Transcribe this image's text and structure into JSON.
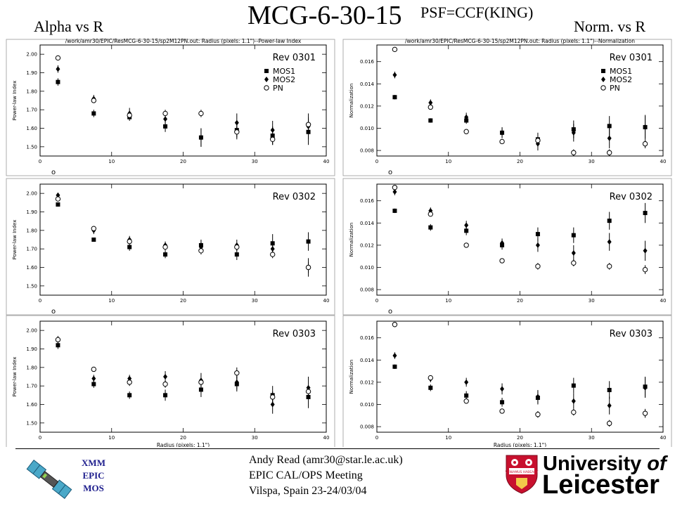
{
  "title": "MCG-6-30-15",
  "subtitle": "PSF=CCF(KING)",
  "left_heading": "Alpha vs R",
  "right_heading": "Norm. vs R",
  "footer": {
    "mission_lines": [
      "XMM",
      "EPIC",
      "MOS"
    ],
    "presenter": "Andy Read (amr30@star.le.ac.uk)",
    "meeting": "EPIC CAL/OPS Meeting",
    "location": "Vilspa, Spain 23-24/03/04",
    "university_line1": "University",
    "university_of": "of",
    "university_line2": "Leicester",
    "logo_motto": "VENIAMUS HABEANT"
  },
  "colors": {
    "text": "#000000",
    "mission_text": "#1c1c8c",
    "logo_red": "#c8102e",
    "points": "#000000"
  },
  "chart_data": [
    {
      "type": "scatter",
      "header": "/work/amr30/EPIC/ResMCG-6-30-15/sp2M12PN.out: Radius (pixels: 1.1\")--Power-law Index",
      "panel_label": "Rev 0301",
      "ylabel": "Power-law Index",
      "xlabel": "",
      "xlim": [
        0,
        40
      ],
      "ylim": [
        1.45,
        2.05
      ],
      "xticks": [
        0,
        10,
        20,
        30,
        40
      ],
      "yticks": [
        1.5,
        1.6,
        1.7,
        1.8,
        1.9,
        2.0
      ],
      "ytick_labels": [
        "1.50",
        "1.60",
        "1.70",
        "1.80",
        "1.90",
        "2.00"
      ],
      "legend": true,
      "legend_placement": "top-right",
      "stray_mark": "o",
      "series": [
        {
          "name": "MOS1",
          "marker": "square",
          "x": [
            2.5,
            7.5,
            12.5,
            17.5,
            22.5,
            27.5,
            32.5,
            37.5
          ],
          "y": [
            1.85,
            1.68,
            1.66,
            1.61,
            1.55,
            1.59,
            1.56,
            1.58
          ],
          "err": [
            0.02,
            0.02,
            0.02,
            0.03,
            0.05,
            0.05,
            0.05,
            0.07
          ]
        },
        {
          "name": "MOS2",
          "marker": "diamond",
          "x": [
            2.5,
            7.5,
            12.5,
            17.5,
            22.5,
            27.5,
            32.5,
            37.5
          ],
          "y": [
            1.92,
            1.76,
            1.68,
            1.65,
            1.55,
            1.63,
            1.59,
            1.61
          ],
          "err": [
            0.02,
            0.02,
            0.03,
            0.03,
            0.05,
            0.05,
            0.05,
            0.07
          ]
        },
        {
          "name": "PN",
          "marker": "circle",
          "x": [
            2.5,
            7.5,
            12.5,
            17.5,
            22.5,
            27.5,
            32.5,
            37.5
          ],
          "y": [
            1.98,
            1.75,
            1.67,
            1.68,
            1.68,
            1.58,
            1.54,
            1.62
          ],
          "err": [
            0.01,
            0.01,
            0.02,
            0.02,
            0.02,
            0.03,
            0.03,
            0.04
          ]
        }
      ]
    },
    {
      "type": "scatter",
      "header": "/work/amr30/EPIC/ResMCG-6-30-15/sp2M12PN.out: Radius (pixels: 1.1\")--Normalization",
      "panel_label": "Rev 0301",
      "ylabel": "Normalization",
      "xlabel": "",
      "xlim": [
        0,
        40
      ],
      "ylim": [
        0.0075,
        0.0175
      ],
      "xticks": [
        0,
        10,
        20,
        30,
        40
      ],
      "yticks": [
        0.008,
        0.01,
        0.012,
        0.014,
        0.016
      ],
      "ytick_labels": [
        "0.008",
        "0.010",
        "0.012",
        "0.014",
        "0.016"
      ],
      "legend": true,
      "legend_placement": "top-right",
      "stray_mark": "o",
      "series": [
        {
          "name": "MOS1",
          "marker": "square",
          "x": [
            2.5,
            7.5,
            12.5,
            17.5,
            22.5,
            27.5,
            32.5,
            37.5
          ],
          "y": [
            0.0128,
            0.0107,
            0.0107,
            0.0096,
            0.009,
            0.0099,
            0.0102,
            0.0101
          ],
          "err": [
            0.0002,
            0.0002,
            0.0003,
            0.0004,
            0.0006,
            0.0008,
            0.0009,
            0.001
          ]
        },
        {
          "name": "MOS2",
          "marker": "diamond",
          "x": [
            2.5,
            7.5,
            12.5,
            17.5,
            22.5,
            27.5,
            32.5,
            37.5
          ],
          "y": [
            0.0148,
            0.0123,
            0.011,
            0.0096,
            0.0086,
            0.0096,
            0.0091,
            0.0101
          ],
          "err": [
            0.0003,
            0.0003,
            0.0004,
            0.0005,
            0.0006,
            0.0008,
            0.0009,
            0.0011
          ]
        },
        {
          "name": "PN",
          "marker": "circle",
          "x": [
            2.5,
            7.5,
            12.5,
            17.5,
            22.5,
            27.5,
            32.5,
            37.5
          ],
          "y": [
            0.0171,
            0.0119,
            0.0097,
            0.0088,
            0.0089,
            0.0078,
            0.0078,
            0.0086
          ],
          "err": [
            0.0002,
            0.0002,
            0.0002,
            0.0002,
            0.0003,
            0.0003,
            0.0003,
            0.0004
          ]
        }
      ]
    },
    {
      "type": "scatter",
      "header": "",
      "panel_label": "Rev 0302",
      "ylabel": "Power-law Index",
      "xlabel": "",
      "xlim": [
        0,
        40
      ],
      "ylim": [
        1.45,
        2.05
      ],
      "xticks": [
        0,
        10,
        20,
        30,
        40
      ],
      "yticks": [
        1.5,
        1.6,
        1.7,
        1.8,
        1.9,
        2.0
      ],
      "ytick_labels": [
        "1.50",
        "1.60",
        "1.70",
        "1.80",
        "1.90",
        "2.00"
      ],
      "legend": false,
      "stray_mark": "o",
      "series": [
        {
          "marker": "square",
          "x": [
            2.5,
            7.5,
            12.5,
            17.5,
            22.5,
            27.5,
            32.5,
            37.5
          ],
          "y": [
            1.94,
            1.75,
            1.71,
            1.67,
            1.72,
            1.67,
            1.73,
            1.74
          ],
          "err": [
            0.01,
            0.01,
            0.02,
            0.02,
            0.03,
            0.03,
            0.05,
            0.05
          ]
        },
        {
          "marker": "diamond",
          "x": [
            2.5,
            7.5,
            12.5,
            17.5,
            22.5,
            27.5,
            32.5,
            37.5
          ],
          "y": [
            1.99,
            1.8,
            1.75,
            1.72,
            1.71,
            1.72,
            1.7,
            1.6
          ],
          "err": [
            0.01,
            0.02,
            0.02,
            0.02,
            0.03,
            0.03,
            0.04,
            0.05
          ]
        },
        {
          "marker": "circle",
          "x": [
            2.5,
            7.5,
            12.5,
            17.5,
            22.5,
            27.5,
            32.5,
            37.5
          ],
          "y": [
            1.97,
            1.81,
            1.74,
            1.71,
            1.69,
            1.71,
            1.67,
            1.6
          ],
          "err": [
            0.01,
            0.01,
            0.01,
            0.02,
            0.02,
            0.02,
            0.02,
            0.03
          ]
        }
      ]
    },
    {
      "type": "scatter",
      "header": "",
      "panel_label": "Rev 0302",
      "ylabel": "Normalization",
      "xlabel": "",
      "xlim": [
        0,
        40
      ],
      "ylim": [
        0.0075,
        0.0175
      ],
      "xticks": [
        0,
        10,
        20,
        30,
        40
      ],
      "yticks": [
        0.008,
        0.01,
        0.012,
        0.014,
        0.016
      ],
      "ytick_labels": [
        "0.008",
        "0.010",
        "0.012",
        "0.014",
        "0.016"
      ],
      "legend": false,
      "stray_mark": "o",
      "series": [
        {
          "marker": "square",
          "x": [
            2.5,
            7.5,
            12.5,
            17.5,
            22.5,
            27.5,
            32.5,
            37.5
          ],
          "y": [
            0.0151,
            0.0136,
            0.0133,
            0.012,
            0.013,
            0.0129,
            0.0142,
            0.0149
          ],
          "err": [
            0.0002,
            0.0003,
            0.0004,
            0.0004,
            0.0006,
            0.0007,
            0.0008,
            0.0009
          ]
        },
        {
          "marker": "diamond",
          "x": [
            2.5,
            7.5,
            12.5,
            17.5,
            22.5,
            27.5,
            32.5,
            37.5
          ],
          "y": [
            0.0168,
            0.0151,
            0.0138,
            0.0122,
            0.012,
            0.0113,
            0.0123,
            0.0115
          ],
          "err": [
            0.0003,
            0.0003,
            0.0004,
            0.0004,
            0.0006,
            0.0007,
            0.0008,
            0.0009
          ]
        },
        {
          "marker": "circle",
          "x": [
            2.5,
            7.5,
            12.5,
            17.5,
            22.5,
            27.5,
            32.5,
            37.5
          ],
          "y": [
            0.0172,
            0.0148,
            0.012,
            0.0106,
            0.0101,
            0.0104,
            0.0101,
            0.0098
          ],
          "err": [
            0.0002,
            0.0002,
            0.0002,
            0.0002,
            0.0003,
            0.0003,
            0.0003,
            0.0004
          ]
        }
      ]
    },
    {
      "type": "scatter",
      "header": "",
      "panel_label": "Rev 0303",
      "ylabel": "Power-law Index",
      "xlabel": "Radius (pixels: 1.1\")",
      "xlim": [
        0,
        40
      ],
      "ylim": [
        1.45,
        2.05
      ],
      "xticks": [
        0,
        10,
        20,
        30,
        40
      ],
      "yticks": [
        1.5,
        1.6,
        1.7,
        1.8,
        1.9,
        2.0
      ],
      "ytick_labels": [
        "1.50",
        "1.60",
        "1.70",
        "1.80",
        "1.90",
        "2.00"
      ],
      "legend": false,
      "series": [
        {
          "marker": "square",
          "x": [
            2.5,
            7.5,
            12.5,
            17.5,
            22.5,
            27.5,
            32.5,
            37.5
          ],
          "y": [
            1.92,
            1.71,
            1.65,
            1.65,
            1.68,
            1.71,
            1.65,
            1.64
          ],
          "err": [
            0.02,
            0.02,
            0.02,
            0.03,
            0.04,
            0.04,
            0.05,
            0.06
          ]
        },
        {
          "marker": "diamond",
          "x": [
            2.5,
            7.5,
            12.5,
            17.5,
            22.5,
            27.5,
            32.5,
            37.5
          ],
          "y": [
            1.95,
            1.74,
            1.74,
            1.75,
            1.73,
            1.72,
            1.6,
            1.69
          ],
          "err": [
            0.02,
            0.02,
            0.02,
            0.03,
            0.04,
            0.04,
            0.05,
            0.06
          ]
        },
        {
          "marker": "circle",
          "x": [
            2.5,
            7.5,
            12.5,
            17.5,
            22.5,
            27.5,
            32.5,
            37.5
          ],
          "y": [
            1.95,
            1.79,
            1.72,
            1.71,
            1.72,
            1.77,
            1.64,
            1.67
          ],
          "err": [
            0.01,
            0.01,
            0.02,
            0.02,
            0.02,
            0.03,
            0.03,
            0.03
          ]
        }
      ]
    },
    {
      "type": "scatter",
      "header": "",
      "panel_label": "Rev 0303",
      "ylabel": "Normalization",
      "xlabel": "Radius (pixels: 1.1\")",
      "xlim": [
        0,
        40
      ],
      "ylim": [
        0.0075,
        0.0175
      ],
      "xticks": [
        0,
        10,
        20,
        30,
        40
      ],
      "yticks": [
        0.008,
        0.01,
        0.012,
        0.014,
        0.016
      ],
      "ytick_labels": [
        "0.008",
        "0.010",
        "0.012",
        "0.014",
        "0.016"
      ],
      "legend": false,
      "series": [
        {
          "marker": "square",
          "x": [
            2.5,
            7.5,
            12.5,
            17.5,
            22.5,
            27.5,
            32.5,
            37.5
          ],
          "y": [
            0.0134,
            0.0115,
            0.0108,
            0.0102,
            0.0106,
            0.0117,
            0.0113,
            0.0116
          ],
          "err": [
            0.0002,
            0.0003,
            0.0004,
            0.0004,
            0.0006,
            0.0007,
            0.0008,
            0.0009
          ]
        },
        {
          "marker": "diamond",
          "x": [
            2.5,
            7.5,
            12.5,
            17.5,
            22.5,
            27.5,
            32.5,
            37.5
          ],
          "y": [
            0.0144,
            0.0123,
            0.012,
            0.0114,
            0.0107,
            0.0103,
            0.0099,
            0.0115
          ],
          "err": [
            0.0003,
            0.0003,
            0.0004,
            0.0005,
            0.0006,
            0.0007,
            0.0008,
            0.0009
          ]
        },
        {
          "marker": "circle",
          "x": [
            2.5,
            7.5,
            12.5,
            17.5,
            22.5,
            27.5,
            32.5,
            37.5
          ],
          "y": [
            0.0172,
            0.0124,
            0.0103,
            0.0094,
            0.0091,
            0.0093,
            0.0083,
            0.0092
          ],
          "err": [
            0.0002,
            0.0002,
            0.0002,
            0.0002,
            0.0003,
            0.0003,
            0.0003,
            0.0004
          ]
        }
      ]
    }
  ]
}
